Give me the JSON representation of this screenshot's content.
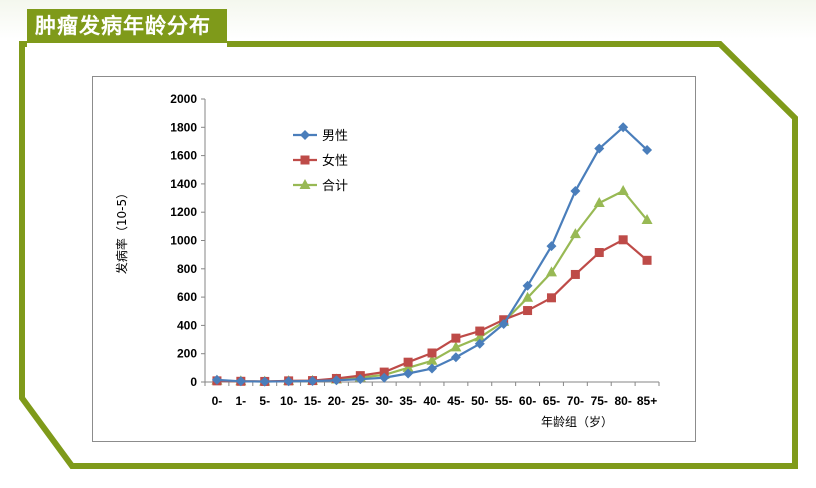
{
  "page": {
    "title": "肿瘤发病年龄分布"
  },
  "colors": {
    "accent": "#7f9a1a",
    "male": "#4a7ebb",
    "female": "#be4b48",
    "total": "#98b954"
  },
  "chart_data": {
    "type": "line",
    "title": "",
    "xlabel": "年龄组（岁）",
    "ylabel": "发病率（10-5）",
    "ylim": [
      0,
      2000
    ],
    "yticks": [
      0,
      200,
      400,
      600,
      800,
      1000,
      1200,
      1400,
      1600,
      1800,
      2000
    ],
    "ytick_labels": [
      "0",
      "200",
      "400",
      "600",
      "800",
      "1000",
      "1200",
      "1400",
      "1600",
      "1800",
      "2000"
    ],
    "categories": [
      "0-",
      "1-",
      "5-",
      "10-",
      "15-",
      "20-",
      "25-",
      "30-",
      "35-",
      "40-",
      "45-",
      "50-",
      "55-",
      "60-",
      "65-",
      "70-",
      "75-",
      "80-",
      "85+"
    ],
    "grid": false,
    "legend_position": "top-left",
    "series": [
      {
        "name": "男性",
        "marker": "diamond",
        "color": "#4a7ebb",
        "values": [
          15,
          5,
          3,
          5,
          7,
          12,
          20,
          30,
          60,
          95,
          175,
          270,
          410,
          680,
          960,
          1350,
          1650,
          1800,
          1640
        ]
      },
      {
        "name": "女性",
        "marker": "square",
        "color": "#be4b48",
        "values": [
          8,
          5,
          4,
          8,
          10,
          25,
          45,
          70,
          140,
          205,
          310,
          360,
          440,
          505,
          595,
          760,
          915,
          1005,
          860
        ]
      },
      {
        "name": "合计",
        "marker": "triangle",
        "color": "#98b954",
        "values": [
          10,
          5,
          3,
          6,
          8,
          18,
          32,
          50,
          100,
          150,
          245,
          315,
          425,
          595,
          775,
          1045,
          1265,
          1350,
          1145
        ]
      }
    ]
  }
}
